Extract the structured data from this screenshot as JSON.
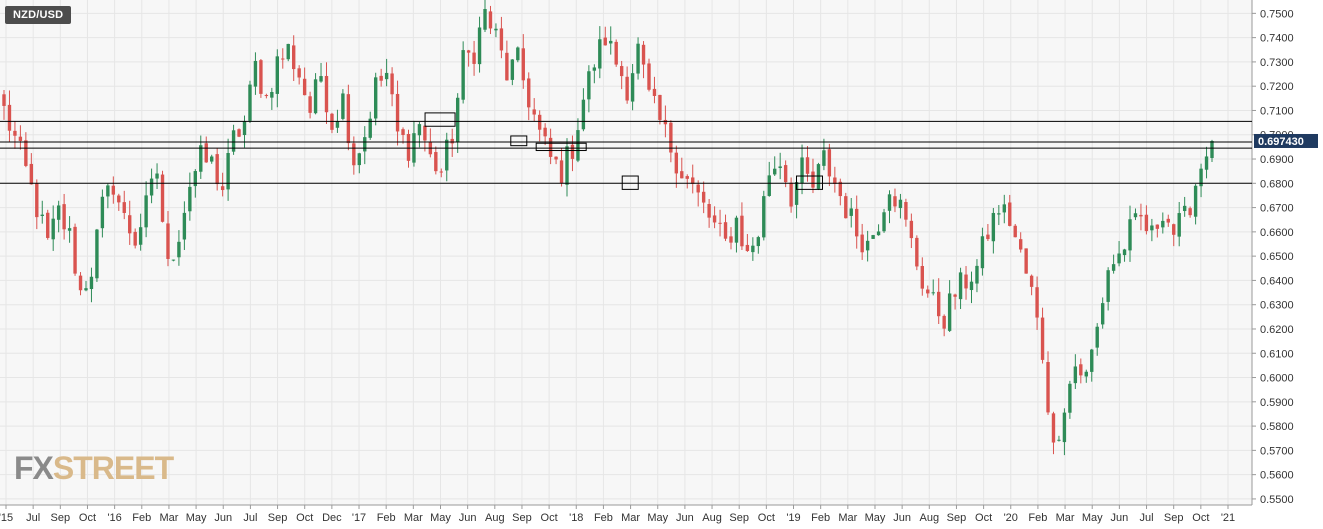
{
  "symbol": "NZD/USD",
  "logo": {
    "part1": "FX",
    "part2": "STREET"
  },
  "last_price_label": "0.697430",
  "colors": {
    "bull": "#2e8b57",
    "bear": "#d9534f",
    "grid": "#e6e6e6",
    "background": "#f7f7f7",
    "level_line": "#000000",
    "price_label_bg": "#1f3a60"
  },
  "chart_data": {
    "type": "candlestick",
    "title": "",
    "timeframe": "weekly",
    "y_ticks": [
      "0.7500",
      "0.7400",
      "0.7300",
      "0.7200",
      "0.7100",
      "0.7000",
      "0.6900",
      "0.6800",
      "0.6700",
      "0.6600",
      "0.6500",
      "0.6400",
      "0.6300",
      "0.6200",
      "0.6100",
      "0.6000",
      "0.5900",
      "0.5800",
      "0.5700",
      "0.5600",
      "0.5500"
    ],
    "ylim": [
      0.5475,
      0.7555
    ],
    "x_ticks": [
      "'15",
      "Jul",
      "Sep",
      "Oct",
      "'16",
      "Feb",
      "Mar",
      "May",
      "Jun",
      "Jul",
      "Sep",
      "Oct",
      "Dec",
      "'17",
      "Feb",
      "Mar",
      "May",
      "Jun",
      "Aug",
      "Sep",
      "Oct",
      "'18",
      "Feb",
      "Mar",
      "May",
      "Jun",
      "Aug",
      "Sep",
      "Oct",
      "'19",
      "Feb",
      "Mar",
      "May",
      "Jun",
      "Aug",
      "Sep",
      "Oct",
      "'20",
      "Feb",
      "Mar",
      "May",
      "Jun",
      "Jul",
      "Sep",
      "Oct",
      "'21"
    ],
    "horizontal_levels": [
      0.7055,
      0.697,
      0.6945,
      0.68
    ],
    "highlight_zones": [
      {
        "date_index": 0.36,
        "price_low": 0.7035,
        "price_high": 0.709
      },
      {
        "date_index": 0.425,
        "price_low": 0.6955,
        "price_high": 0.6995
      },
      {
        "date_index": 0.46,
        "price_low": 0.6935,
        "price_high": 0.6965
      },
      {
        "date_index": 0.517,
        "price_low": 0.6775,
        "price_high": 0.683
      },
      {
        "date_index": 0.665,
        "price_low": 0.6775,
        "price_high": 0.683
      }
    ],
    "last_price": 0.69743,
    "close_path": [
      [
        0,
        0.71
      ],
      [
        2,
        0.698
      ],
      [
        4,
        0.685
      ],
      [
        6,
        0.67
      ],
      [
        8,
        0.655
      ],
      [
        10,
        0.668
      ],
      [
        12,
        0.658
      ],
      [
        14,
        0.635
      ],
      [
        16,
        0.645
      ],
      [
        18,
        0.67
      ],
      [
        20,
        0.68
      ],
      [
        22,
        0.665
      ],
      [
        24,
        0.657
      ],
      [
        26,
        0.67
      ],
      [
        28,
        0.685
      ],
      [
        30,
        0.645
      ],
      [
        32,
        0.66
      ],
      [
        34,
        0.68
      ],
      [
        36,
        0.69
      ],
      [
        38,
        0.688
      ],
      [
        40,
        0.678
      ],
      [
        42,
        0.698
      ],
      [
        44,
        0.705
      ],
      [
        46,
        0.728
      ],
      [
        48,
        0.715
      ],
      [
        50,
        0.73
      ],
      [
        52,
        0.735
      ],
      [
        54,
        0.725
      ],
      [
        56,
        0.71
      ],
      [
        58,
        0.725
      ],
      [
        60,
        0.705
      ],
      [
        62,
        0.715
      ],
      [
        64,
        0.69
      ],
      [
        66,
        0.7
      ],
      [
        68,
        0.72
      ],
      [
        70,
        0.725
      ],
      [
        72,
        0.7
      ],
      [
        74,
        0.695
      ],
      [
        76,
        0.705
      ],
      [
        78,
        0.69
      ],
      [
        80,
        0.685
      ],
      [
        82,
        0.7
      ],
      [
        84,
        0.73
      ],
      [
        86,
        0.735
      ],
      [
        88,
        0.75
      ],
      [
        90,
        0.74
      ],
      [
        92,
        0.725
      ],
      [
        94,
        0.73
      ],
      [
        96,
        0.715
      ],
      [
        98,
        0.7
      ],
      [
        100,
        0.69
      ],
      [
        102,
        0.685
      ],
      [
        104,
        0.695
      ],
      [
        106,
        0.715
      ],
      [
        108,
        0.73
      ],
      [
        110,
        0.74
      ],
      [
        112,
        0.73
      ],
      [
        114,
        0.72
      ],
      [
        116,
        0.735
      ],
      [
        118,
        0.715
      ],
      [
        120,
        0.705
      ],
      [
        122,
        0.695
      ],
      [
        124,
        0.685
      ],
      [
        126,
        0.678
      ],
      [
        128,
        0.67
      ],
      [
        130,
        0.662
      ],
      [
        132,
        0.655
      ],
      [
        134,
        0.665
      ],
      [
        136,
        0.65
      ],
      [
        138,
        0.66
      ],
      [
        140,
        0.685
      ],
      [
        142,
        0.69
      ],
      [
        144,
        0.675
      ],
      [
        146,
        0.685
      ],
      [
        148,
        0.678
      ],
      [
        150,
        0.69
      ],
      [
        152,
        0.68
      ],
      [
        154,
        0.67
      ],
      [
        156,
        0.66
      ],
      [
        158,
        0.655
      ],
      [
        160,
        0.665
      ],
      [
        162,
        0.68
      ],
      [
        164,
        0.67
      ],
      [
        166,
        0.655
      ],
      [
        168,
        0.64
      ],
      [
        170,
        0.63
      ],
      [
        172,
        0.625
      ],
      [
        174,
        0.635
      ],
      [
        176,
        0.64
      ],
      [
        178,
        0.645
      ],
      [
        180,
        0.66
      ],
      [
        182,
        0.67
      ],
      [
        184,
        0.665
      ],
      [
        186,
        0.65
      ],
      [
        188,
        0.635
      ],
      [
        190,
        0.61
      ],
      [
        192,
        0.57
      ],
      [
        194,
        0.59
      ],
      [
        196,
        0.605
      ],
      [
        198,
        0.6
      ],
      [
        200,
        0.62
      ],
      [
        202,
        0.645
      ],
      [
        204,
        0.65
      ],
      [
        206,
        0.66
      ],
      [
        208,
        0.665
      ],
      [
        210,
        0.658
      ],
      [
        212,
        0.67
      ],
      [
        214,
        0.66
      ],
      [
        216,
        0.665
      ],
      [
        218,
        0.68
      ],
      [
        220,
        0.695
      ],
      [
        221,
        0.6974
      ]
    ]
  }
}
